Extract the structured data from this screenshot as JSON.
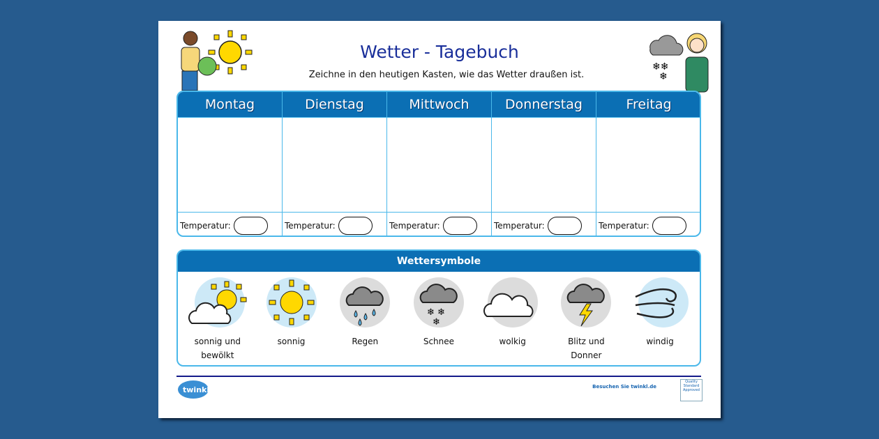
{
  "header": {
    "title": "Wetter - Tagebuch",
    "subtitle": "Zeichne in den heutigen Kasten, wie das Wetter draußen ist."
  },
  "days": [
    "Montag",
    "Dienstag",
    "Mittwoch",
    "Donnerstag",
    "Freitag"
  ],
  "temperature_label": "Temperatur:",
  "symbols": {
    "title": "Wettersymbole",
    "items": [
      {
        "label": "sonnig und bewölkt",
        "icon": "sun-cloud-icon"
      },
      {
        "label": "sonnig",
        "icon": "sun-icon"
      },
      {
        "label": "Regen",
        "icon": "rain-icon"
      },
      {
        "label": "Schnee",
        "icon": "snow-icon"
      },
      {
        "label": "wolkig",
        "icon": "cloud-icon"
      },
      {
        "label": "Blitz und Donner",
        "icon": "lightning-icon"
      },
      {
        "label": "windig",
        "icon": "wind-icon"
      }
    ]
  },
  "footer": {
    "logo": "twinkl",
    "visit": "Besuchen Sie twinkl.de",
    "badge": "Quality Standard Approved"
  },
  "colors": {
    "header_blue": "#0b6fb4",
    "border_blue": "#4ab8ea",
    "title_blue": "#1a2f9a",
    "background": "#265b8e"
  }
}
